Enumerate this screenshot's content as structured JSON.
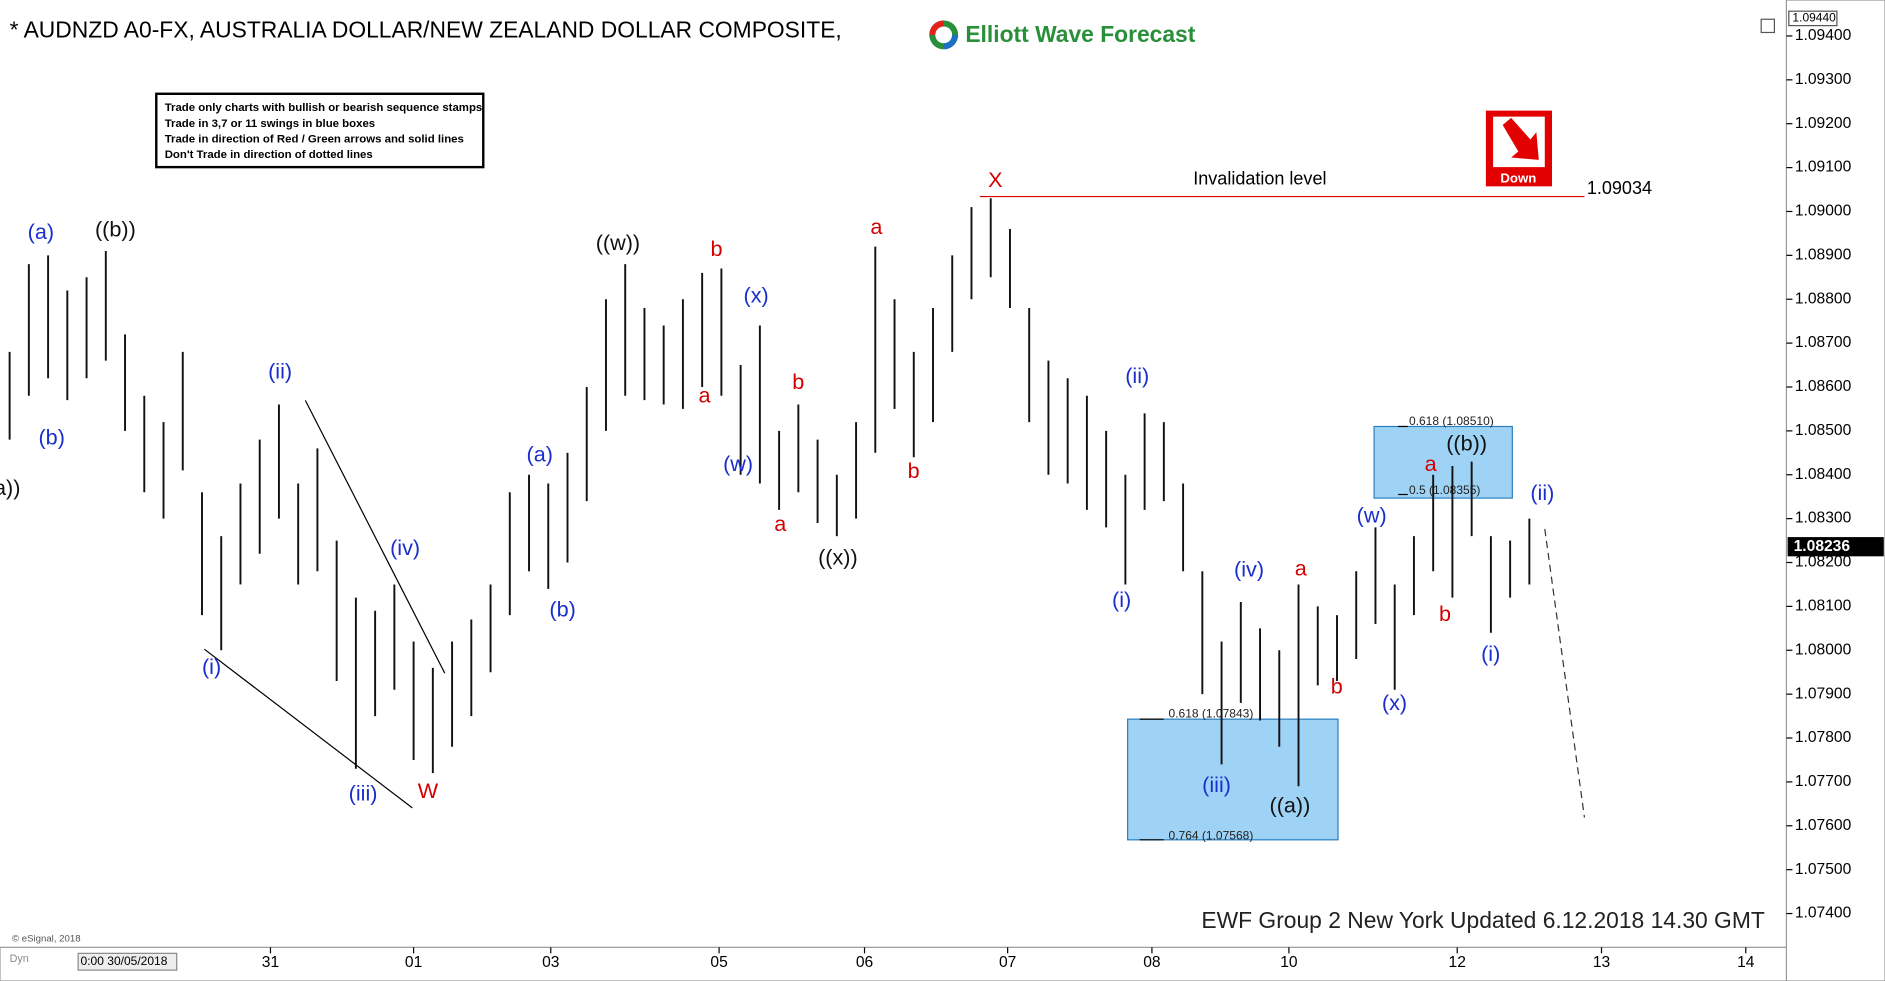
{
  "chart_data": {
    "type": "ohlc",
    "title": "* AUDNZD A0-FX, AUSTRALIA DOLLAR/NEW ZEALAND DOLLAR COMPOSITE,",
    "logo": "Elliott Wave Forecast",
    "rules": [
      "Trade only charts with bullish or bearish sequence stamps",
      "Trade in 3,7 or 11 swings in blue boxes",
      "Trade in direction of Red / Green arrows and solid lines",
      "Don't Trade in direction of dotted lines"
    ],
    "signal": "Down",
    "footer": "EWF Group 2 New York Updated 6.12.2018 14.30 GMT",
    "copyright": "© eSignal, 2018",
    "start_date": "0:00 30/05/2018",
    "mode": "Dyn",
    "high": [
      1.0868,
      1.0888,
      1.089,
      1.0882,
      1.0885,
      1.0891,
      1.0872,
      1.0858,
      1.0852,
      1.0868,
      1.0836,
      1.0826,
      1.0838,
      1.0848,
      1.0856,
      1.0838,
      1.0846,
      1.0825,
      1.0812,
      1.0809,
      1.0815,
      1.0802,
      1.0796,
      1.0802,
      1.0807,
      1.0815,
      1.0836,
      1.084,
      1.0838,
      1.0845,
      1.086,
      1.088,
      1.0888,
      1.0878,
      1.0874,
      1.088,
      1.0886,
      1.0887,
      1.0865,
      1.0874,
      1.085,
      1.0856,
      1.0848,
      1.084,
      1.0852,
      1.0892,
      1.088,
      1.0868,
      1.0878,
      1.089,
      1.0901,
      1.0903,
      1.0896,
      1.0878,
      1.0866,
      1.0862,
      1.0858,
      1.085,
      1.084,
      1.0854,
      1.0852,
      1.0838,
      1.0818,
      1.0802,
      1.0811,
      1.0805,
      1.08,
      1.0815,
      1.081,
      1.0808,
      1.0818,
      1.0828,
      1.0815,
      1.0826,
      1.084,
      1.0842,
      1.0843,
      1.0826,
      1.0825,
      1.083
    ],
    "low": [
      1.0848,
      1.0858,
      1.0862,
      1.0857,
      1.0862,
      1.0866,
      1.085,
      1.0836,
      1.083,
      1.0841,
      1.0808,
      1.08,
      1.0815,
      1.0822,
      1.083,
      1.0815,
      1.0818,
      1.0793,
      1.0773,
      1.0785,
      1.0791,
      1.0775,
      1.0772,
      1.0778,
      1.0785,
      1.0795,
      1.0808,
      1.0818,
      1.0814,
      1.082,
      1.0834,
      1.085,
      1.0858,
      1.0857,
      1.0856,
      1.0855,
      1.086,
      1.0858,
      1.084,
      1.0838,
      1.0832,
      1.0836,
      1.0829,
      1.0826,
      1.083,
      1.0845,
      1.0855,
      1.0844,
      1.0852,
      1.0868,
      1.088,
      1.0885,
      1.0878,
      1.0852,
      1.084,
      1.0838,
      1.0832,
      1.0828,
      1.0815,
      1.0832,
      1.0834,
      1.0818,
      1.079,
      1.0774,
      1.0788,
      1.0784,
      1.0778,
      1.0769,
      1.0792,
      1.0793,
      1.0798,
      1.0806,
      1.0791,
      1.0808,
      1.0818,
      1.0812,
      1.0826,
      1.0804,
      1.0812,
      1.0815
    ],
    "color": "#111111",
    "xlim": [
      -0.5,
      92.3
    ],
    "xticks": [
      {
        "value": 13.56,
        "label": "31"
      },
      {
        "value": 21,
        "label": "01"
      },
      {
        "value": 28.13,
        "label": "03"
      },
      {
        "value": 36.88,
        "label": "05"
      },
      {
        "value": 44.44,
        "label": "06"
      },
      {
        "value": 51.88,
        "label": "07"
      },
      {
        "value": 59.38,
        "label": "08"
      },
      {
        "value": 66.5,
        "label": "10"
      },
      {
        "value": 75.25,
        "label": "12"
      },
      {
        "value": 82.75,
        "label": "13"
      },
      {
        "value": 90.25,
        "label": "14"
      }
    ],
    "ylim": [
      1.07323,
      1.0946
    ],
    "yticks": [
      {
        "value": 1.074,
        "label": "1.07400"
      },
      {
        "value": 1.075,
        "label": "1.07500"
      },
      {
        "value": 1.076,
        "label": "1.07600"
      },
      {
        "value": 1.077,
        "label": "1.07700"
      },
      {
        "value": 1.078,
        "label": "1.07800"
      },
      {
        "value": 1.079,
        "label": "1.07900"
      },
      {
        "value": 1.08,
        "label": "1.08000"
      },
      {
        "value": 1.081,
        "label": "1.08100"
      },
      {
        "value": 1.082,
        "label": "1.08200"
      },
      {
        "value": 1.083,
        "label": "1.08300"
      },
      {
        "value": 1.084,
        "label": "1.08400"
      },
      {
        "value": 1.085,
        "label": "1.08500"
      },
      {
        "value": 1.086,
        "label": "1.08600"
      },
      {
        "value": 1.087,
        "label": "1.08700"
      },
      {
        "value": 1.088,
        "label": "1.08800"
      },
      {
        "value": 1.089,
        "label": "1.08900"
      },
      {
        "value": 1.09,
        "label": "1.09000"
      },
      {
        "value": 1.091,
        "label": "1.09100"
      },
      {
        "value": 1.092,
        "label": "1.09200"
      },
      {
        "value": 1.093,
        "label": "1.09300"
      },
      {
        "value": 1.094,
        "label": "1.09400"
      }
    ],
    "axis_top": {
      "value": 1.0944,
      "label": "1.09440"
    },
    "last_price": 1.08236,
    "invalidation": {
      "label": "Invalidation level",
      "value": 1.09034,
      "color": "#e00000"
    },
    "fib_boxes": [
      {
        "top": 1.07843,
        "bottom": 1.07568,
        "top_label": "0.618 (1.07843)",
        "bottom_label": "0.764 (1.07568)"
      },
      {
        "top": 1.0851,
        "bottom": 1.08355,
        "top_label": "0.618 (1.08510)",
        "bottom_label": "0.5 (1.08355)"
      }
    ],
    "box_color": "#9fd3f5",
    "wave_labels": [
      "a))",
      "(a)",
      "((b))",
      "(b)",
      "(ii)",
      "(iv)",
      "(i)",
      "(iii)",
      "W",
      "(a)",
      "(b)",
      "((w))",
      "b",
      "(x)",
      "a",
      "b",
      "(w)",
      "a",
      "((x))",
      "a",
      "b",
      "X",
      "(ii)",
      "(i)",
      "(iv)",
      "a",
      "b",
      "(iii)",
      "((a))",
      "(w)",
      "(x)",
      "a",
      "((b))",
      "b",
      "(ii)",
      "(i)"
    ]
  }
}
